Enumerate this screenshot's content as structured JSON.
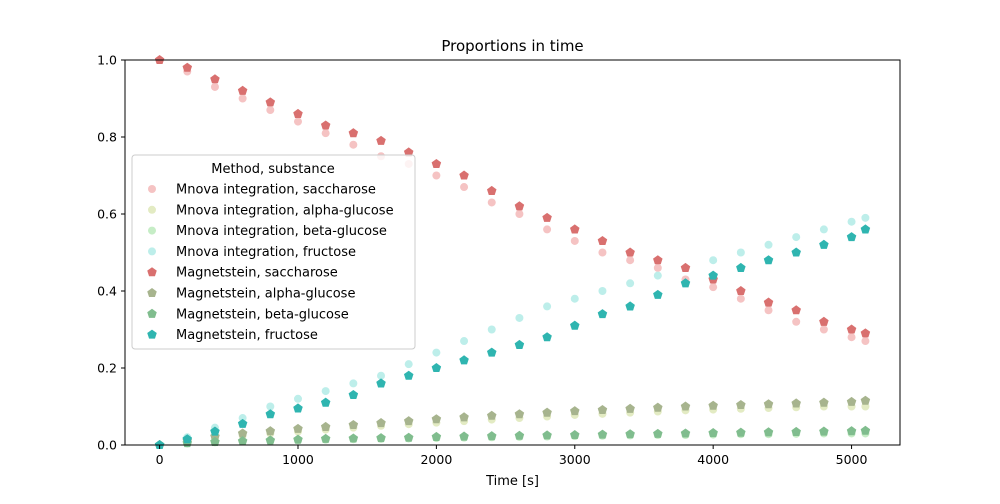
{
  "chart_data": {
    "type": "scatter",
    "title": "Proportions in time",
    "xlabel": "Time [s]",
    "ylabel": "",
    "xlim": [
      -250,
      5350
    ],
    "ylim": [
      0,
      1.0
    ],
    "x_ticks": [
      0,
      1000,
      2000,
      3000,
      4000,
      5000
    ],
    "y_ticks": [
      0.0,
      0.2,
      0.4,
      0.6,
      0.8,
      1.0
    ],
    "x_tick_labels": [
      "0",
      "1000",
      "2000",
      "3000",
      "4000",
      "5000"
    ],
    "y_tick_labels": [
      "0.0",
      "0.2",
      "0.4",
      "0.6",
      "0.8",
      "1.0"
    ],
    "grid": false,
    "legend": {
      "title": "Method, substance",
      "placement": "center-left"
    },
    "series": [
      {
        "name": "Mnova integration, saccharose",
        "marker": "circle",
        "color": "#f5c3c3",
        "x": [
          0,
          200,
          400,
          600,
          800,
          1000,
          1200,
          1400,
          1600,
          1800,
          2000,
          2200,
          2400,
          2600,
          2800,
          3000,
          3200,
          3400,
          3600,
          3800,
          4000,
          4200,
          4400,
          4600,
          4800,
          5000,
          5100
        ],
        "y": [
          1.0,
          0.97,
          0.93,
          0.9,
          0.87,
          0.84,
          0.81,
          0.78,
          0.75,
          0.73,
          0.7,
          0.67,
          0.63,
          0.6,
          0.56,
          0.53,
          0.5,
          0.48,
          0.46,
          0.43,
          0.41,
          0.38,
          0.35,
          0.32,
          0.3,
          0.28,
          0.27
        ]
      },
      {
        "name": "Mnova integration, alpha-glucose",
        "marker": "circle",
        "color": "#e3ebc3",
        "x": [
          0,
          200,
          400,
          600,
          800,
          1000,
          1200,
          1400,
          1600,
          1800,
          2000,
          2200,
          2400,
          2600,
          2800,
          3000,
          3200,
          3400,
          3600,
          3800,
          4000,
          4200,
          4400,
          4600,
          4800,
          5000,
          5100
        ],
        "y": [
          0.0,
          0.01,
          0.018,
          0.025,
          0.03,
          0.035,
          0.04,
          0.045,
          0.05,
          0.054,
          0.058,
          0.062,
          0.066,
          0.07,
          0.074,
          0.078,
          0.081,
          0.084,
          0.087,
          0.09,
          0.092,
          0.094,
          0.096,
          0.098,
          0.1,
          0.1,
          0.1
        ]
      },
      {
        "name": "Mnova integration, beta-glucose",
        "marker": "circle",
        "color": "#c6edc6",
        "x": [
          0,
          200,
          400,
          600,
          800,
          1000,
          1200,
          1400,
          1600,
          1800,
          2000,
          2200,
          2400,
          2600,
          2800,
          3000,
          3200,
          3400,
          3600,
          3800,
          4000,
          4200,
          4400,
          4600,
          4800,
          5000,
          5100
        ],
        "y": [
          0.0,
          0.004,
          0.007,
          0.009,
          0.011,
          0.012,
          0.014,
          0.015,
          0.016,
          0.017,
          0.018,
          0.019,
          0.02,
          0.021,
          0.022,
          0.023,
          0.024,
          0.025,
          0.026,
          0.026,
          0.027,
          0.028,
          0.028,
          0.029,
          0.03,
          0.03,
          0.03
        ]
      },
      {
        "name": "Mnova integration, fructose",
        "marker": "circle",
        "color": "#bdeeea",
        "x": [
          0,
          200,
          400,
          600,
          800,
          1000,
          1200,
          1400,
          1600,
          1800,
          2000,
          2200,
          2400,
          2600,
          2800,
          3000,
          3200,
          3400,
          3600,
          3800,
          4000,
          4200,
          4400,
          4600,
          4800,
          5000,
          5100
        ],
        "y": [
          0.0,
          0.02,
          0.045,
          0.07,
          0.1,
          0.12,
          0.14,
          0.16,
          0.18,
          0.21,
          0.24,
          0.27,
          0.3,
          0.33,
          0.36,
          0.38,
          0.4,
          0.42,
          0.44,
          0.46,
          0.48,
          0.5,
          0.52,
          0.54,
          0.56,
          0.58,
          0.59
        ]
      },
      {
        "name": "Magnetstein, saccharose",
        "marker": "pentagon",
        "color": "#d9706f",
        "x": [
          0,
          200,
          400,
          600,
          800,
          1000,
          1200,
          1400,
          1600,
          1800,
          2000,
          2200,
          2400,
          2600,
          2800,
          3000,
          3200,
          3400,
          3600,
          3800,
          4000,
          4200,
          4400,
          4600,
          4800,
          5000,
          5100
        ],
        "y": [
          1.0,
          0.98,
          0.95,
          0.92,
          0.89,
          0.86,
          0.83,
          0.81,
          0.79,
          0.76,
          0.73,
          0.7,
          0.66,
          0.62,
          0.59,
          0.56,
          0.53,
          0.5,
          0.48,
          0.46,
          0.43,
          0.4,
          0.37,
          0.35,
          0.32,
          0.3,
          0.29
        ]
      },
      {
        "name": "Magnetstein, alpha-glucose",
        "marker": "pentagon",
        "color": "#a7b48e",
        "x": [
          0,
          200,
          400,
          600,
          800,
          1000,
          1200,
          1400,
          1600,
          1800,
          2000,
          2200,
          2400,
          2600,
          2800,
          3000,
          3200,
          3400,
          3600,
          3800,
          4000,
          4200,
          4400,
          4600,
          4800,
          5000,
          5100
        ],
        "y": [
          0.0,
          0.012,
          0.022,
          0.03,
          0.036,
          0.042,
          0.047,
          0.052,
          0.057,
          0.062,
          0.067,
          0.072,
          0.076,
          0.08,
          0.084,
          0.088,
          0.091,
          0.094,
          0.097,
          0.1,
          0.102,
          0.104,
          0.106,
          0.108,
          0.11,
          0.112,
          0.115
        ]
      },
      {
        "name": "Magnetstein, beta-glucose",
        "marker": "pentagon",
        "color": "#80bd8e",
        "x": [
          0,
          200,
          400,
          600,
          800,
          1000,
          1200,
          1400,
          1600,
          1800,
          2000,
          2200,
          2400,
          2600,
          2800,
          3000,
          3200,
          3400,
          3600,
          3800,
          4000,
          4200,
          4400,
          4600,
          4800,
          5000,
          5100
        ],
        "y": [
          0.0,
          0.005,
          0.008,
          0.01,
          0.012,
          0.014,
          0.016,
          0.017,
          0.018,
          0.019,
          0.021,
          0.022,
          0.023,
          0.024,
          0.025,
          0.026,
          0.027,
          0.028,
          0.029,
          0.03,
          0.031,
          0.032,
          0.033,
          0.034,
          0.035,
          0.036,
          0.037
        ]
      },
      {
        "name": "Magnetstein, fructose",
        "marker": "pentagon",
        "color": "#2fb5b0",
        "x": [
          0,
          200,
          400,
          600,
          800,
          1000,
          1200,
          1400,
          1600,
          1800,
          2000,
          2200,
          2400,
          2600,
          2800,
          3000,
          3200,
          3400,
          3600,
          3800,
          4000,
          4200,
          4400,
          4600,
          4800,
          5000,
          5100
        ],
        "y": [
          0.0,
          0.015,
          0.035,
          0.055,
          0.08,
          0.095,
          0.11,
          0.13,
          0.16,
          0.18,
          0.2,
          0.22,
          0.24,
          0.26,
          0.28,
          0.31,
          0.34,
          0.36,
          0.39,
          0.42,
          0.44,
          0.46,
          0.48,
          0.5,
          0.52,
          0.54,
          0.56
        ]
      }
    ]
  }
}
